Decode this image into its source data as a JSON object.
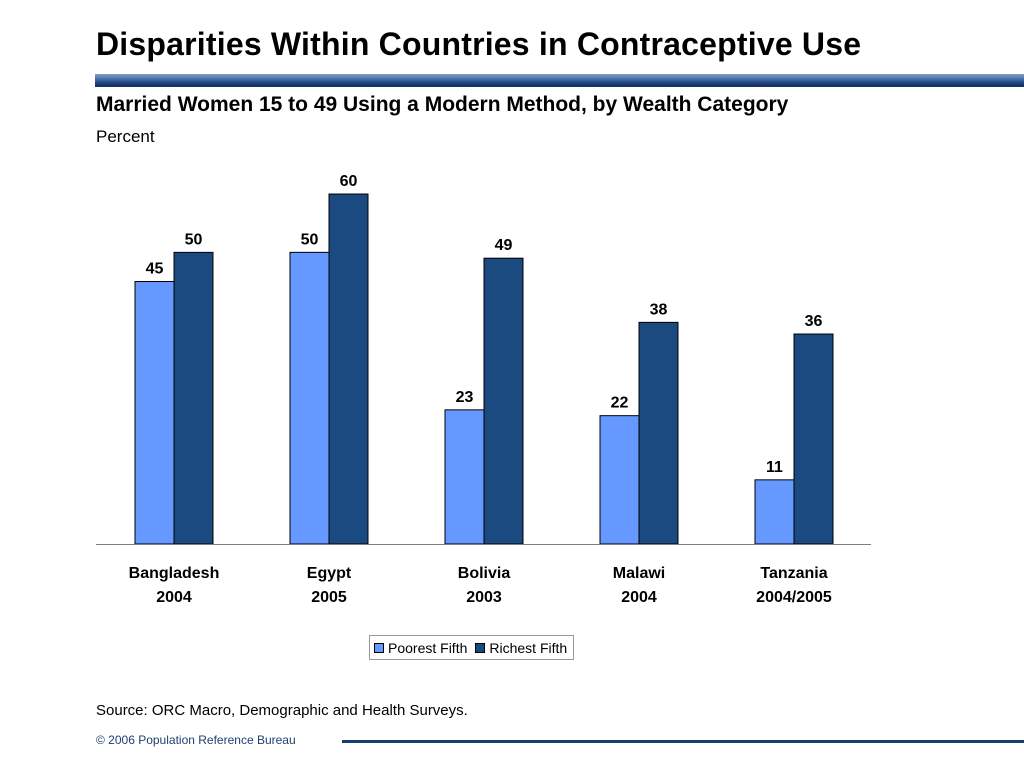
{
  "slide": {
    "title": "Disparities Within Countries in Contraceptive Use",
    "source": "Source: ORC Macro, Demographic and Health Surveys.",
    "footer": "© 2006 Population Reference Bureau"
  },
  "chart_data": {
    "type": "bar",
    "title": "Married Women 15 to 49 Using a Modern Method, by Wealth Category",
    "ylabel": "Percent",
    "categories": [
      [
        "Bangladesh",
        "2004"
      ],
      [
        "Egypt",
        "2005"
      ],
      [
        "Bolivia",
        "2003"
      ],
      [
        "Malawi",
        "2004"
      ],
      [
        "Tanzania",
        "2004/2005"
      ]
    ],
    "series": [
      {
        "name": "Poorest Fifth",
        "color": "#6699ff",
        "values": [
          45,
          50,
          23,
          22,
          11
        ]
      },
      {
        "name": "Richest Fifth",
        "color": "#1a4a80",
        "values": [
          50,
          60,
          49,
          38,
          36
        ]
      }
    ],
    "ylim": [
      0,
      60
    ],
    "grid": false,
    "data_labels": true,
    "legend_position": "bottom-center"
  }
}
